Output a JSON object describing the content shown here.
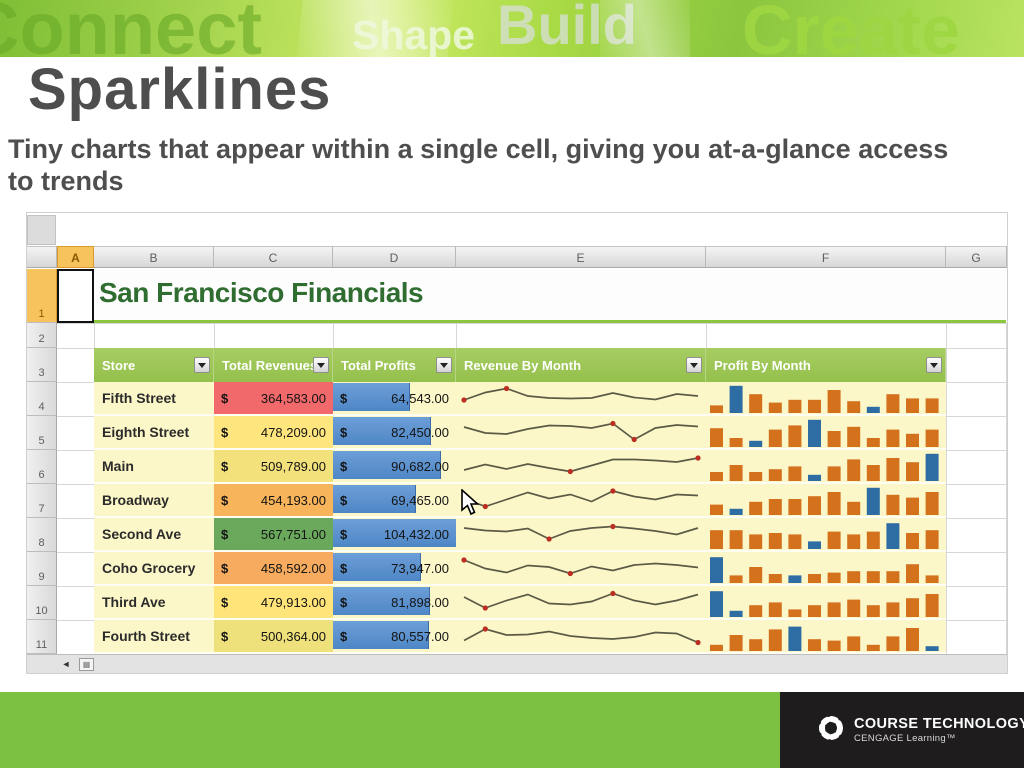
{
  "banner": {
    "words": [
      "Connect",
      "Shape",
      "Build",
      "Create"
    ]
  },
  "slide": {
    "title": "Sparklines",
    "subtitle": "Tiny charts that appear within a single cell, giving you at-a-glance access to trends"
  },
  "spreadsheet": {
    "columns": [
      "A",
      "B",
      "C",
      "D",
      "E",
      "F",
      "G"
    ],
    "highlighted_column": "A",
    "rows": [
      "1",
      "2",
      "3",
      "4",
      "5",
      "6",
      "7",
      "8",
      "9",
      "10",
      "11"
    ],
    "highlighted_row": "1",
    "selected_cell": "A1",
    "sheet_title": "San Francisco Financials",
    "scroll_left_glyph": "◄",
    "table": {
      "currency_symbol": "$",
      "headers": [
        {
          "label": "Store"
        },
        {
          "label": "Total Revenues"
        },
        {
          "label": "Total Profits"
        },
        {
          "label": "Revenue By Month"
        },
        {
          "label": "Profit By Month"
        }
      ],
      "rows": [
        {
          "store": "Fifth Street",
          "revenue": "364,583.00",
          "revenue_bg": "#f2696b",
          "profit": "64,543.00",
          "profit_bar_pct": 61.8,
          "line": [
            4.2,
            7.2,
            8.8,
            5.8,
            5.0,
            4.8,
            5.0,
            7.0,
            5.2,
            4.4,
            6.6,
            5.8
          ],
          "line_markers": [
            0,
            2
          ],
          "bars": [
            2,
            9,
            6,
            3,
            4,
            4,
            7.5,
            3.5,
            1.5,
            6,
            4.5,
            4.5
          ],
          "bars_blue": [
            1,
            8
          ]
        },
        {
          "store": "Eighth Street",
          "revenue": "478,209.00",
          "revenue_bg": "#ffe57d",
          "profit": "82,450.00",
          "profit_bar_pct": 78.9,
          "line": [
            7.0,
            4.6,
            4.2,
            6.2,
            7.6,
            7.4,
            6.6,
            8.4,
            2.0,
            6.6,
            7.8,
            7.2
          ],
          "line_markers": [
            7,
            8
          ],
          "bars": [
            6,
            2.5,
            1.5,
            5.5,
            7,
            9,
            5,
            6.5,
            2.5,
            5.5,
            4,
            5.5
          ],
          "bars_blue": [
            2,
            5
          ]
        },
        {
          "store": "Main",
          "revenue": "509,789.00",
          "revenue_bg": "#f3e17c",
          "profit": "90,682.00",
          "profit_bar_pct": 86.8,
          "line": [
            3.4,
            5.6,
            3.8,
            5.8,
            4.2,
            2.8,
            5.2,
            7.6,
            7.6,
            7.2,
            6.6,
            8.2
          ],
          "line_markers": [
            5,
            11
          ],
          "bars": [
            2.5,
            5,
            2.5,
            3.5,
            4.5,
            1.5,
            4.5,
            7,
            5,
            7.5,
            6,
            9
          ],
          "bars_blue": [
            5,
            11
          ]
        },
        {
          "store": "Broadway",
          "revenue": "454,193.00",
          "revenue_bg": "#f8b45a",
          "profit": "69,465.00",
          "profit_bar_pct": 66.5,
          "line": [
            5.6,
            2.4,
            5.2,
            8.0,
            5.6,
            7.2,
            4.4,
            8.6,
            6.4,
            5.2,
            7.2,
            6.8
          ],
          "line_markers": [
            1,
            7
          ],
          "bars": [
            3,
            1.5,
            4,
            5,
            5,
            6,
            7.5,
            4,
            9,
            6.5,
            5.5,
            7.5
          ],
          "bars_blue": [
            1,
            8
          ]
        },
        {
          "store": "Second Ave",
          "revenue": "567,751.00",
          "revenue_bg": "#6aa85c",
          "profit": "104,432.00",
          "profit_bar_pct": 100,
          "line": [
            7.4,
            6.4,
            6.0,
            7.2,
            3.0,
            6.2,
            7.4,
            8.0,
            7.2,
            6.2,
            4.8,
            7.4
          ],
          "line_markers": [
            4,
            7
          ],
          "bars": [
            6,
            6,
            4.5,
            5,
            4.5,
            2,
            5.5,
            4.5,
            5.5,
            8.5,
            5,
            6
          ],
          "bars_blue": [
            5,
            9
          ]
        },
        {
          "store": "Coho Grocery",
          "revenue": "458,592.00",
          "revenue_bg": "#f6ab5e",
          "profit": "73,947.00",
          "profit_bar_pct": 70.8,
          "line": [
            8.2,
            4.8,
            3.2,
            6.0,
            5.4,
            2.8,
            5.6,
            4.0,
            6.2,
            6.8,
            6.2,
            5.2
          ],
          "line_markers": [
            0,
            5
          ],
          "bars": [
            8.5,
            2,
            5,
            2.5,
            2,
            2.5,
            3,
            3.5,
            3.5,
            3.5,
            6,
            2
          ],
          "bars_blue": [
            0,
            4
          ]
        },
        {
          "store": "Third Ave",
          "revenue": "479,913.00",
          "revenue_bg": "#ffe479",
          "profit": "81,898.00",
          "profit_bar_pct": 78.4,
          "line": [
            7.0,
            2.6,
            5.6,
            8.0,
            4.4,
            4.0,
            5.2,
            8.4,
            5.6,
            4.0,
            5.6,
            8.0
          ],
          "line_markers": [
            1,
            7
          ],
          "bars": [
            8.5,
            1.5,
            3.5,
            4.5,
            2,
            3.5,
            4.5,
            5.5,
            3.5,
            4.5,
            6,
            7.5
          ],
          "bars_blue": [
            0,
            1
          ]
        },
        {
          "store": "Fourth Street",
          "revenue": "500,364.00",
          "revenue_bg": "#eee07a",
          "profit": "80,557.00",
          "profit_bar_pct": 77.1,
          "line": [
            3.2,
            7.8,
            5.4,
            5.6,
            6.8,
            5.0,
            4.2,
            3.8,
            4.6,
            6.4,
            6.0,
            2.4
          ],
          "line_markers": [
            1,
            11
          ],
          "bars": [
            1.5,
            5,
            3.5,
            7,
            8,
            3.5,
            3,
            4.5,
            1.5,
            4.5,
            7.5,
            1
          ],
          "bars_blue": [
            4,
            11
          ]
        }
      ]
    }
  },
  "footer": {
    "brand_line1": "COURSE TECHNOLOGY",
    "brand_line2": "CENGAGE Learning™"
  },
  "colors": {
    "table_header_green": "#9cc553",
    "cell_yellow": "#fbf7c8",
    "databar_blue": "#4e86c6",
    "spark_orange": "#d4711c",
    "spark_blue": "#2d6da3",
    "spark_line": "#5a5a46",
    "spark_marker": "#bb2e22",
    "footer_green": "#7cc142",
    "footer_black": "#1e1c1d",
    "title_green": "#2f6d31"
  }
}
